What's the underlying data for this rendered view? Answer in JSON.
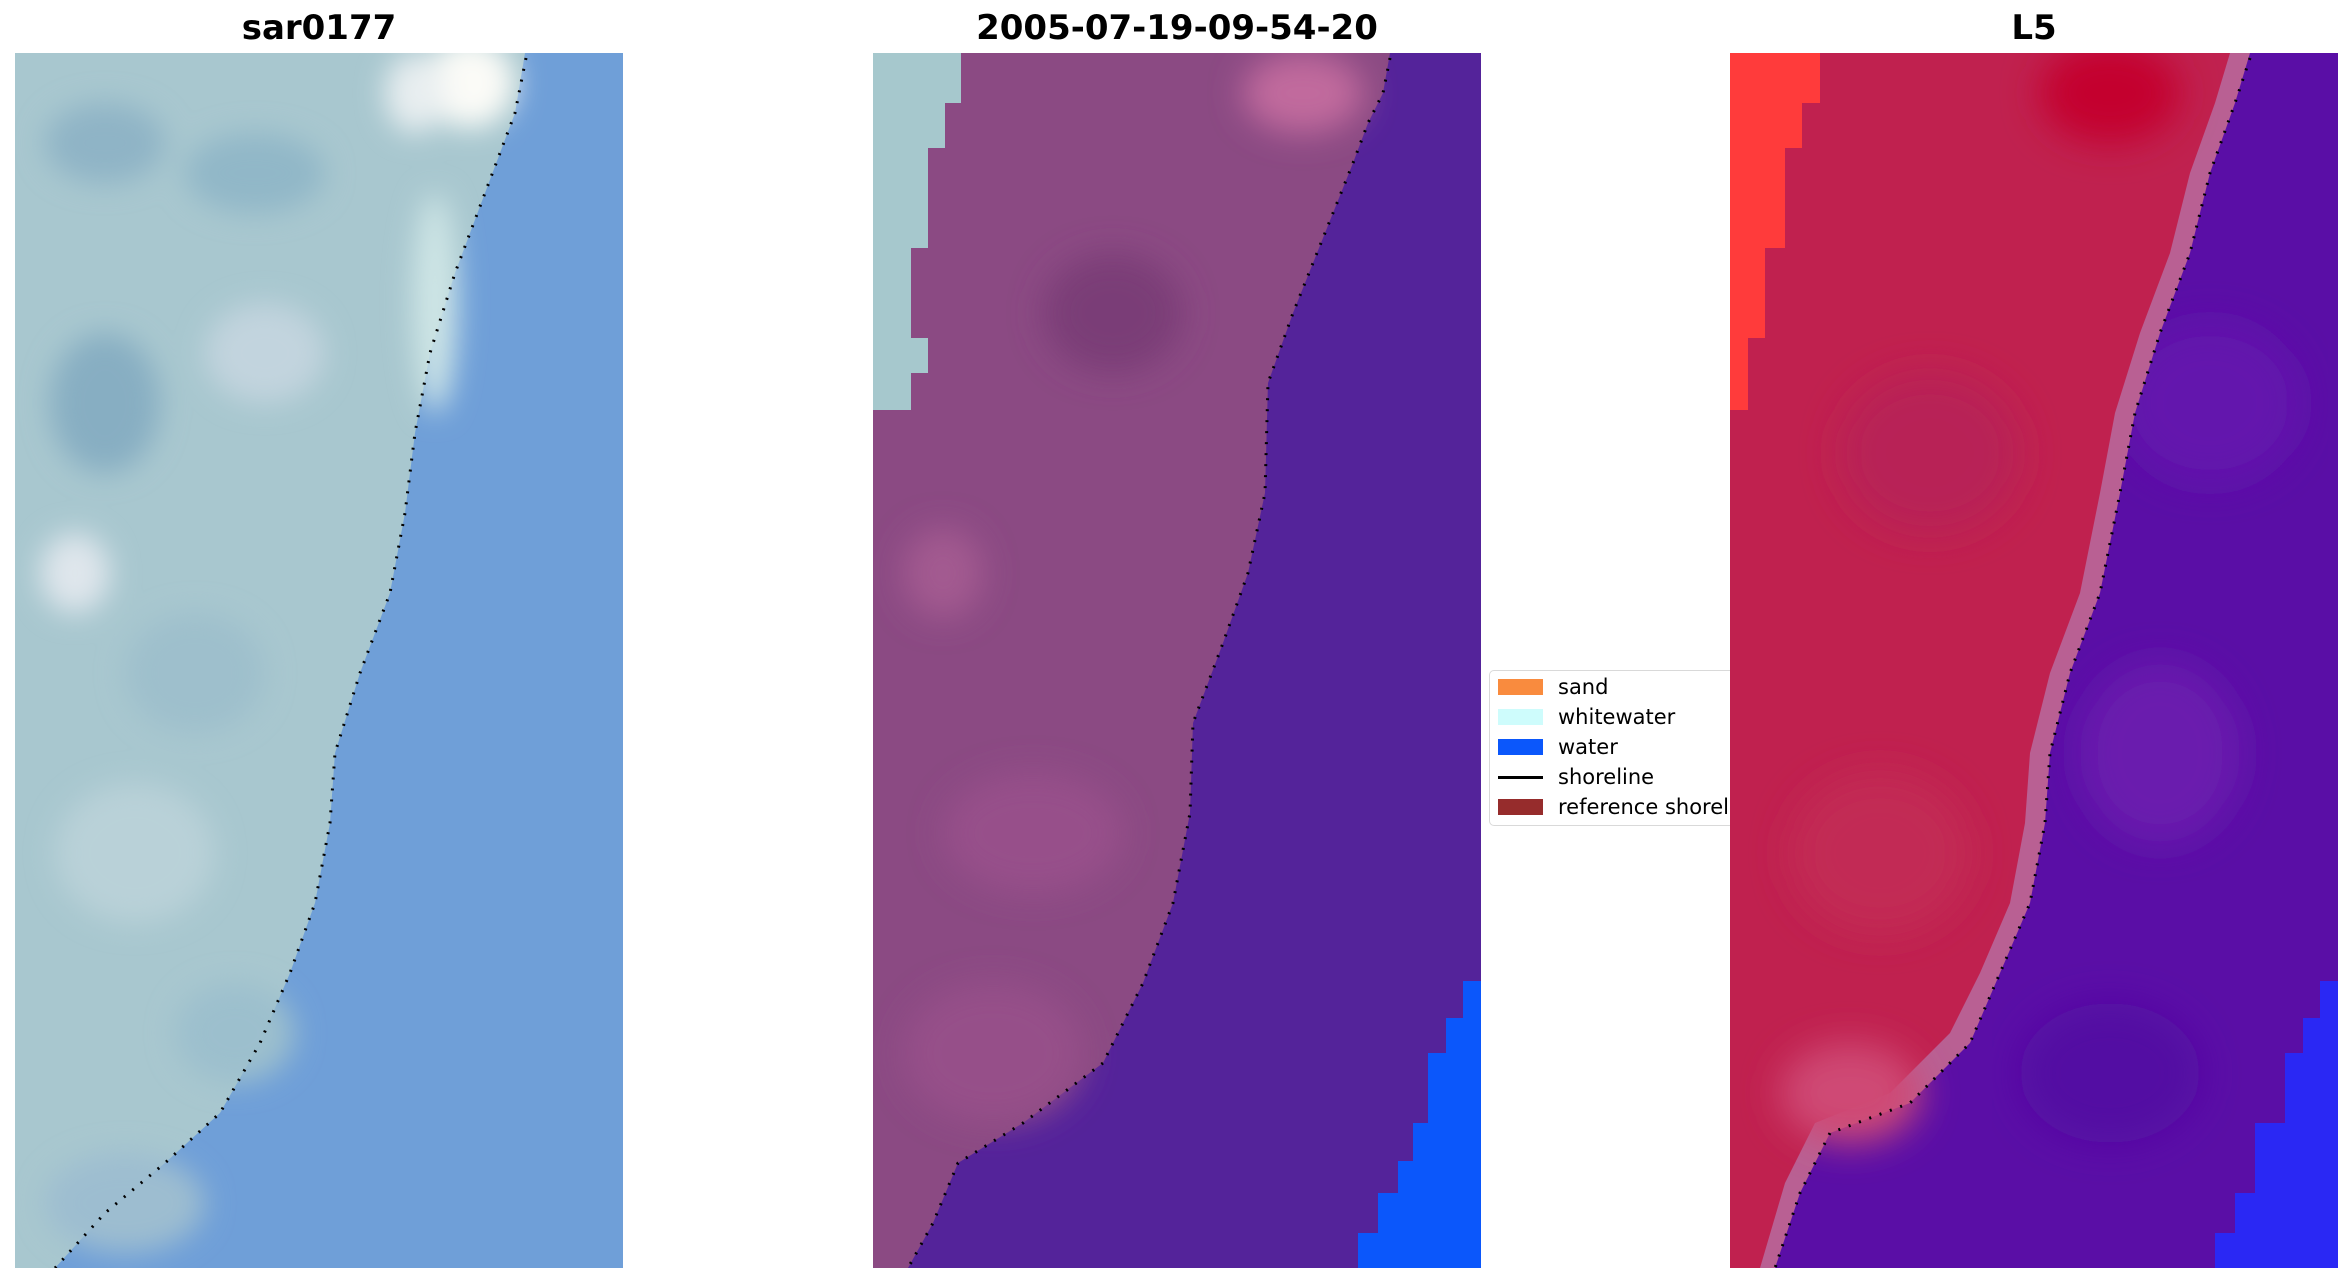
{
  "panels": [
    {
      "title": "sar0177"
    },
    {
      "title": "2005-07-19-09-54-20"
    },
    {
      "title": "L5"
    }
  ],
  "legend": {
    "items": [
      {
        "label": "sand",
        "color": "#f98b3e",
        "kind": "patch"
      },
      {
        "label": "whitewater",
        "color": "#cefcfc",
        "kind": "patch"
      },
      {
        "label": "water",
        "color": "#0b57fb",
        "kind": "patch"
      },
      {
        "label": "shoreline",
        "color": "#000000",
        "kind": "line"
      },
      {
        "label": "reference shoreline",
        "color": "#962c2c",
        "kind": "patch"
      }
    ]
  },
  "colors": {
    "rgb_land": "#a9c6cf",
    "rgb_water": "#6f9fd8",
    "class_land": "#8b4a83",
    "class_water": "#54239a",
    "class_whitewater": "#a6c8cd",
    "class_water_highlight": "#0b57fb",
    "index_land": "#c0214f",
    "index_land_bright": "#ff3b3b",
    "index_water": "#5a0ea6",
    "index_water_highlight": "#2a28f4",
    "shoreline": "#000000"
  }
}
